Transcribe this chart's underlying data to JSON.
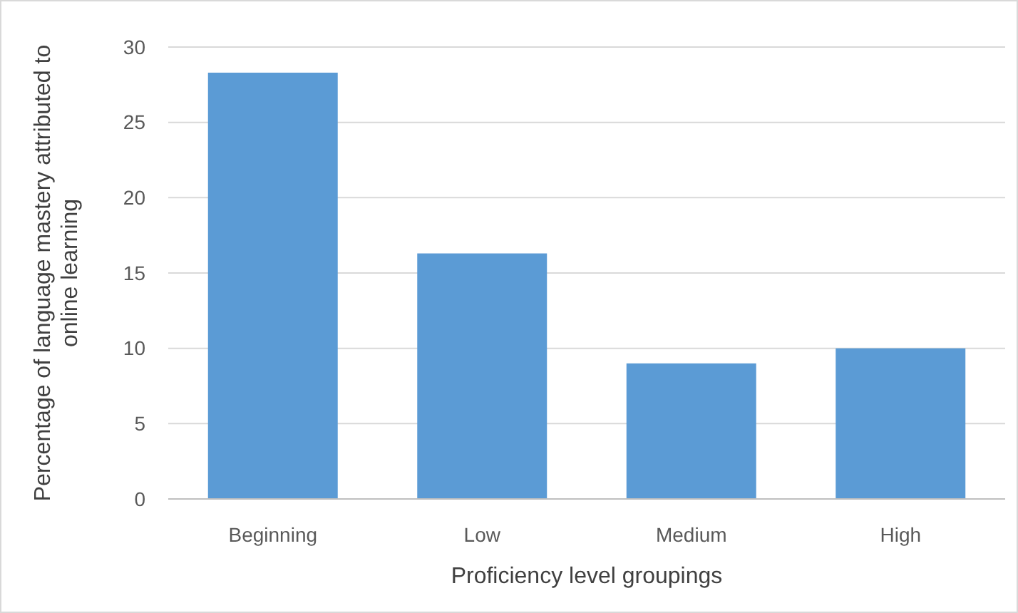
{
  "chart_data": {
    "type": "bar",
    "xlabel": "Proficiency level groupings",
    "ylabel": "Percentage of language mastery attributed to online learning",
    "categories": [
      "Beginning",
      "Low",
      "Medium",
      "High"
    ],
    "values": [
      28.3,
      16.3,
      9.0,
      10.0
    ],
    "color": "#5b9bd5",
    "ylim": [
      0,
      30
    ],
    "yticks": [
      0,
      5,
      10,
      15,
      20,
      25,
      30
    ],
    "grid": "y"
  }
}
